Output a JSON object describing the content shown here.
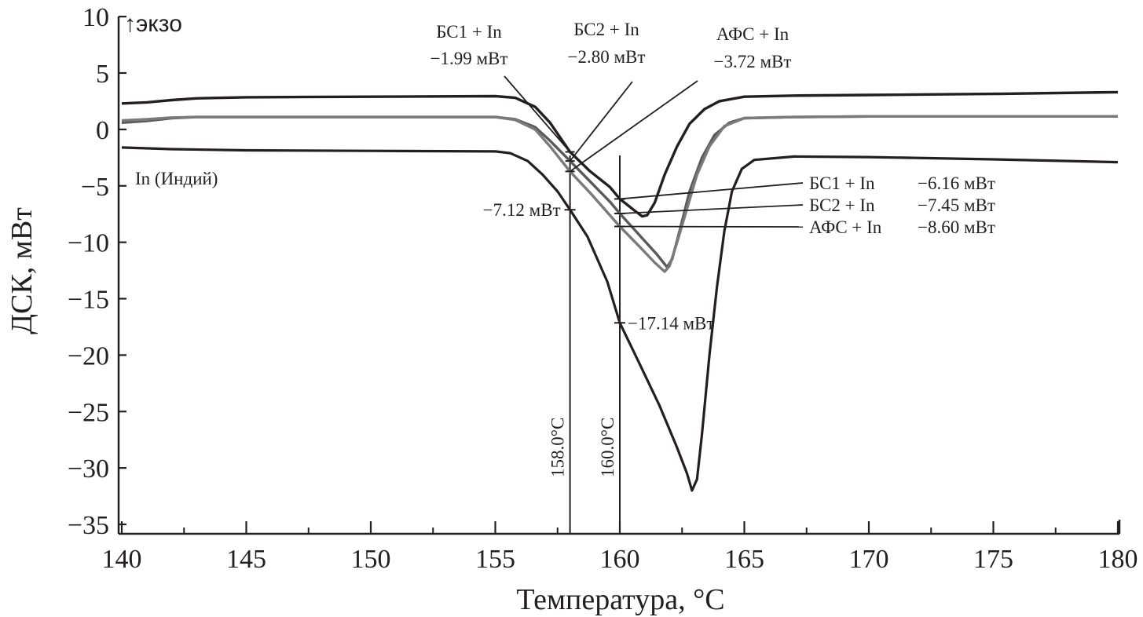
{
  "chart_data": {
    "type": "line",
    "title": "",
    "xlabel": "Температура, °C",
    "ylabel": "ДСК, мВт",
    "xlim": [
      140,
      180
    ],
    "ylim": [
      -35,
      10
    ],
    "x_ticks": [
      140,
      145,
      150,
      155,
      160,
      165,
      170,
      175,
      180
    ],
    "y_ticks": [
      10,
      5,
      0,
      -5,
      -10,
      -15,
      -20,
      -25,
      -30,
      -35
    ],
    "y_tick_labels": [
      "10",
      "5",
      "0",
      "−5",
      "−10",
      "−15",
      "−20",
      "−25",
      "−30",
      "−35"
    ],
    "grid": false,
    "exo_label": "↑экзо",
    "series": [
      {
        "name": "БС1 + In",
        "color": "#231f20",
        "points": [
          [
            140,
            2.3
          ],
          [
            141,
            2.4
          ],
          [
            142,
            2.6
          ],
          [
            143,
            2.75
          ],
          [
            145,
            2.85
          ],
          [
            150,
            2.9
          ],
          [
            155,
            2.95
          ],
          [
            155.8,
            2.8
          ],
          [
            156.6,
            2.0
          ],
          [
            157.2,
            0.6
          ],
          [
            158,
            -1.99
          ],
          [
            158.8,
            -3.7
          ],
          [
            159.6,
            -5.1
          ],
          [
            160,
            -6.16
          ],
          [
            160.6,
            -7.2
          ],
          [
            160.9,
            -7.7
          ],
          [
            161.1,
            -7.6
          ],
          [
            161.4,
            -6.5
          ],
          [
            161.8,
            -4.0
          ],
          [
            162.3,
            -1.5
          ],
          [
            162.8,
            0.5
          ],
          [
            163.4,
            1.8
          ],
          [
            164,
            2.5
          ],
          [
            165,
            2.9
          ],
          [
            167,
            3.0
          ],
          [
            170,
            3.05
          ],
          [
            175,
            3.15
          ],
          [
            180,
            3.3
          ]
        ]
      },
      {
        "name": "БС2 + In",
        "color": "#5a5a5a",
        "points": [
          [
            140,
            0.6
          ],
          [
            141,
            0.75
          ],
          [
            142,
            1.0
          ],
          [
            143,
            1.1
          ],
          [
            145,
            1.1
          ],
          [
            150,
            1.1
          ],
          [
            155,
            1.1
          ],
          [
            155.8,
            0.9
          ],
          [
            156.6,
            0.2
          ],
          [
            157.2,
            -1.0
          ],
          [
            158,
            -2.8
          ],
          [
            158.8,
            -4.6
          ],
          [
            159.6,
            -6.4
          ],
          [
            160,
            -7.45
          ],
          [
            160.8,
            -9.4
          ],
          [
            161.5,
            -11.1
          ],
          [
            161.9,
            -12.2
          ],
          [
            162.1,
            -11.5
          ],
          [
            162.4,
            -9.0
          ],
          [
            162.8,
            -5.5
          ],
          [
            163.3,
            -2.5
          ],
          [
            163.8,
            -0.5
          ],
          [
            164.4,
            0.6
          ],
          [
            165,
            1.0
          ],
          [
            167,
            1.1
          ],
          [
            170,
            1.15
          ],
          [
            175,
            1.15
          ],
          [
            180,
            1.15
          ]
        ]
      },
      {
        "name": "АФС + In",
        "color": "#7a7a7a",
        "points": [
          [
            140,
            0.8
          ],
          [
            141,
            0.9
          ],
          [
            142,
            1.05
          ],
          [
            143,
            1.1
          ],
          [
            145,
            1.1
          ],
          [
            150,
            1.1
          ],
          [
            155,
            1.1
          ],
          [
            155.8,
            0.85
          ],
          [
            156.6,
            0.0
          ],
          [
            157.2,
            -1.5
          ],
          [
            158,
            -3.72
          ],
          [
            158.8,
            -5.6
          ],
          [
            159.6,
            -7.6
          ],
          [
            160,
            -8.6
          ],
          [
            160.8,
            -10.4
          ],
          [
            161.4,
            -11.8
          ],
          [
            161.8,
            -12.6
          ],
          [
            162.0,
            -12.1
          ],
          [
            162.3,
            -10.0
          ],
          [
            162.7,
            -7.0
          ],
          [
            163.1,
            -4.0
          ],
          [
            163.6,
            -1.5
          ],
          [
            164.2,
            0.3
          ],
          [
            165,
            1.0
          ],
          [
            167,
            1.1
          ],
          [
            170,
            1.15
          ],
          [
            175,
            1.15
          ],
          [
            180,
            1.15
          ]
        ]
      },
      {
        "name": "In (Индий)",
        "color": "#231f20",
        "points": [
          [
            140,
            -1.6
          ],
          [
            142,
            -1.75
          ],
          [
            145,
            -1.85
          ],
          [
            150,
            -1.9
          ],
          [
            155,
            -1.95
          ],
          [
            155.6,
            -2.1
          ],
          [
            156.3,
            -2.8
          ],
          [
            156.9,
            -4.0
          ],
          [
            157.5,
            -5.5
          ],
          [
            158,
            -7.12
          ],
          [
            158.7,
            -9.5
          ],
          [
            159.5,
            -13.5
          ],
          [
            160,
            -17.14
          ],
          [
            160.8,
            -20.8
          ],
          [
            161.6,
            -24.5
          ],
          [
            162.3,
            -28.2
          ],
          [
            162.7,
            -30.5
          ],
          [
            162.9,
            -32.0
          ],
          [
            163.1,
            -31.0
          ],
          [
            163.3,
            -27.0
          ],
          [
            163.6,
            -20.0
          ],
          [
            163.9,
            -14.0
          ],
          [
            164.2,
            -9.0
          ],
          [
            164.5,
            -5.5
          ],
          [
            164.9,
            -3.5
          ],
          [
            165.4,
            -2.7
          ],
          [
            167,
            -2.4
          ],
          [
            170,
            -2.45
          ],
          [
            175,
            -2.65
          ],
          [
            180,
            -2.9
          ]
        ]
      }
    ],
    "vertical_markers": [
      {
        "x": 158,
        "label": "158.0°C"
      },
      {
        "x": 160,
        "label": "160.0°C"
      }
    ],
    "annotations": {
      "onset_158": [
        {
          "series": "БС1 + In",
          "name": "БС1 + In",
          "value": "−1.99 мВт",
          "y": -1.99
        },
        {
          "series": "БС2 + In",
          "name": "БС2 + In",
          "value": "−2.80 мВт",
          "y": -2.8
        },
        {
          "series": "АФС + In",
          "name": "АФС + In",
          "value": "−3.72 мВт",
          "y": -3.72
        }
      ],
      "indium_158": {
        "value": "−7.12 мВт",
        "y": -7.12
      },
      "at_160": [
        {
          "name": "БС1 + In",
          "value": "−6.16 мВт",
          "y": -6.16
        },
        {
          "name": "БС2 + In",
          "value": "−7.45 мВт",
          "y": -7.45
        },
        {
          "name": "АФС + In",
          "value": "−8.60 мВт",
          "y": -8.6
        }
      ],
      "indium_160": {
        "value": "−17.14 мВт",
        "y": -17.14
      },
      "indium_label": "In (Индий)"
    }
  }
}
